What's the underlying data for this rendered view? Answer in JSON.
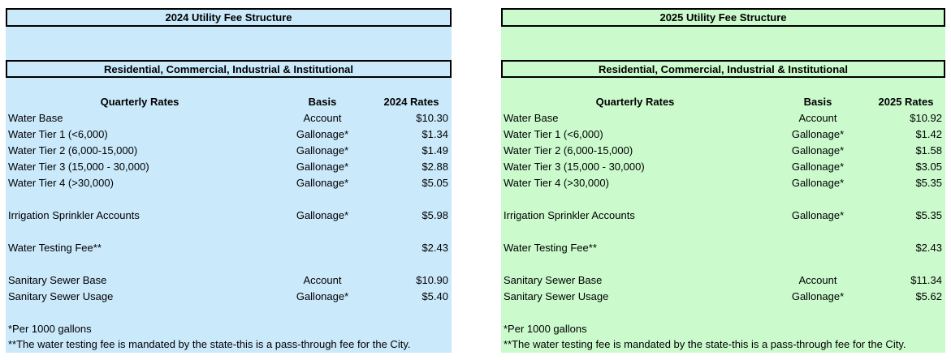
{
  "colors": {
    "page_bg": "#FFFFFF",
    "box_border": "#000000",
    "panel_2024_bg": "#CAE9FB",
    "panel_2025_bg": "#CBFACD"
  },
  "panels": [
    {
      "title": "2024 Utility Fee Structure",
      "subtitle": "Residential, Commercial, Industrial & Institutional",
      "columns": {
        "label": "Quarterly Rates",
        "basis": "Basis",
        "rate": "2024 Rates"
      },
      "rows": [
        {
          "label": "Water Base",
          "basis": "Account",
          "rate": "$10.30"
        },
        {
          "label": "Water Tier 1 (<6,000)",
          "basis": "Gallonage*",
          "rate": "$1.34"
        },
        {
          "label": "Water Tier 2 (6,000-15,000)",
          "basis": "Gallonage*",
          "rate": "$1.49"
        },
        {
          "label": "Water Tier 3 (15,000 - 30,000)",
          "basis": "Gallonage*",
          "rate": "$2.88"
        },
        {
          "label": "Water Tier 4 (>30,000)",
          "basis": "Gallonage*",
          "rate": "$5.05"
        },
        {
          "label": "",
          "basis": "",
          "rate": ""
        },
        {
          "label": "Irrigation Sprinkler Accounts",
          "basis": "Gallonage*",
          "rate": "$5.98"
        },
        {
          "label": "",
          "basis": "",
          "rate": ""
        },
        {
          "label": "Water Testing Fee**",
          "basis": "",
          "rate": "$2.43"
        },
        {
          "label": "",
          "basis": "",
          "rate": ""
        },
        {
          "label": "Sanitary Sewer Base",
          "basis": "Account",
          "rate": "$10.90"
        },
        {
          "label": "Sanitary Sewer Usage",
          "basis": "Gallonage*",
          "rate": "$5.40"
        },
        {
          "label": "",
          "basis": "",
          "rate": ""
        }
      ],
      "footnotes": [
        "*Per 1000 gallons",
        "**The water testing fee is mandated by the state-this is a pass-through fee for the City."
      ]
    },
    {
      "title": "2025 Utility Fee Structure",
      "subtitle": "Residential, Commercial, Industrial & Institutional",
      "columns": {
        "label": "Quarterly Rates",
        "basis": "Basis",
        "rate": "2025 Rates"
      },
      "rows": [
        {
          "label": "Water Base",
          "basis": "Account",
          "rate": "$10.92"
        },
        {
          "label": "Water Tier 1 (<6,000)",
          "basis": "Gallonage*",
          "rate": "$1.42"
        },
        {
          "label": "Water Tier 2 (6,000-15,000)",
          "basis": "Gallonage*",
          "rate": "$1.58"
        },
        {
          "label": "Water Tier 3 (15,000 - 30,000)",
          "basis": "Gallonage*",
          "rate": "$3.05"
        },
        {
          "label": "Water Tier 4 (>30,000)",
          "basis": "Gallonage*",
          "rate": "$5.35"
        },
        {
          "label": "",
          "basis": "",
          "rate": ""
        },
        {
          "label": "Irrigation Sprinkler Accounts",
          "basis": "Gallonage*",
          "rate": "$5.35"
        },
        {
          "label": "",
          "basis": "",
          "rate": ""
        },
        {
          "label": "Water Testing Fee**",
          "basis": "",
          "rate": "$2.43"
        },
        {
          "label": "",
          "basis": "",
          "rate": ""
        },
        {
          "label": "Sanitary Sewer Base",
          "basis": "Account",
          "rate": "$11.34"
        },
        {
          "label": "Sanitary Sewer Usage",
          "basis": "Gallonage*",
          "rate": "$5.62"
        },
        {
          "label": "",
          "basis": "",
          "rate": ""
        }
      ],
      "footnotes": [
        "*Per 1000 gallons",
        "**The water testing fee is mandated by the state-this is a pass-through fee for the City."
      ]
    }
  ]
}
